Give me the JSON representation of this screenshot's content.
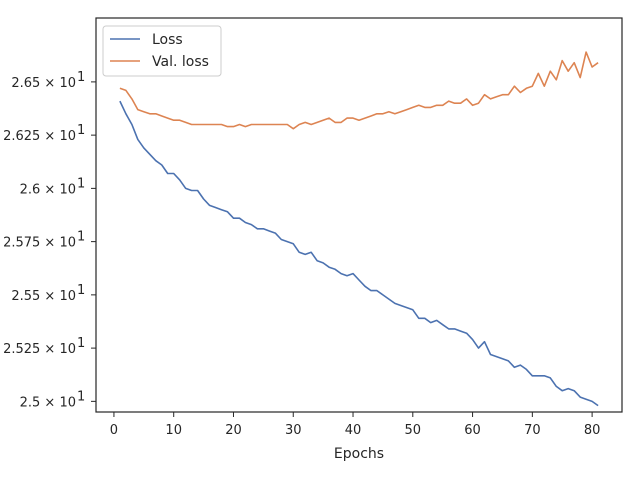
{
  "chart_data": {
    "type": "line",
    "title": "",
    "xlabel": "Epochs",
    "ylabel": "",
    "xlim": [
      -3,
      85
    ],
    "ylim": [
      24.95,
      26.8
    ],
    "xticks": [
      0,
      10,
      20,
      30,
      40,
      50,
      60,
      70,
      80
    ],
    "yticks": [
      {
        "value": 25.0,
        "label": "2.5",
        "exp": "1"
      },
      {
        "value": 25.25,
        "label": "2.525",
        "exp": "1"
      },
      {
        "value": 25.5,
        "label": "2.55",
        "exp": "1"
      },
      {
        "value": 25.75,
        "label": "2.575",
        "exp": "1"
      },
      {
        "value": 26.0,
        "label": "2.6",
        "exp": "1"
      },
      {
        "value": 26.25,
        "label": "2.625",
        "exp": "1"
      },
      {
        "value": 26.5,
        "label": "2.65",
        "exp": "1"
      }
    ],
    "grid": false,
    "legend_position": "top-left",
    "series": [
      {
        "name": "Loss",
        "color": "#4c72b0",
        "x": [
          1,
          2,
          3,
          4,
          5,
          6,
          7,
          8,
          9,
          10,
          11,
          12,
          13,
          14,
          15,
          16,
          17,
          18,
          19,
          20,
          21,
          22,
          23,
          24,
          25,
          26,
          27,
          28,
          29,
          30,
          31,
          32,
          33,
          34,
          35,
          36,
          37,
          38,
          39,
          40,
          41,
          42,
          43,
          44,
          45,
          46,
          47,
          48,
          49,
          50,
          51,
          52,
          53,
          54,
          55,
          56,
          57,
          58,
          59,
          60,
          61,
          62,
          63,
          64,
          65,
          66,
          67,
          68,
          69,
          70,
          71,
          72,
          73,
          74,
          75,
          76,
          77,
          78,
          79,
          80,
          81
        ],
        "values": [
          26.41,
          26.35,
          26.3,
          26.23,
          26.19,
          26.16,
          26.13,
          26.11,
          26.07,
          26.07,
          26.04,
          26.0,
          25.99,
          25.99,
          25.95,
          25.92,
          25.91,
          25.9,
          25.89,
          25.86,
          25.86,
          25.84,
          25.83,
          25.81,
          25.81,
          25.8,
          25.79,
          25.76,
          25.75,
          25.74,
          25.7,
          25.69,
          25.7,
          25.66,
          25.65,
          25.63,
          25.62,
          25.6,
          25.59,
          25.6,
          25.57,
          25.54,
          25.52,
          25.52,
          25.5,
          25.48,
          25.46,
          25.45,
          25.44,
          25.43,
          25.39,
          25.39,
          25.37,
          25.38,
          25.36,
          25.34,
          25.34,
          25.33,
          25.32,
          25.29,
          25.25,
          25.28,
          25.22,
          25.21,
          25.2,
          25.19,
          25.16,
          25.17,
          25.15,
          25.12,
          25.12,
          25.12,
          25.11,
          25.07,
          25.05,
          25.06,
          25.05,
          25.02,
          25.01,
          25.0,
          24.98
        ]
      },
      {
        "name": "Val. loss",
        "color": "#dd8452",
        "x": [
          1,
          2,
          3,
          4,
          5,
          6,
          7,
          8,
          9,
          10,
          11,
          12,
          13,
          14,
          15,
          16,
          17,
          18,
          19,
          20,
          21,
          22,
          23,
          24,
          25,
          26,
          27,
          28,
          29,
          30,
          31,
          32,
          33,
          34,
          35,
          36,
          37,
          38,
          39,
          40,
          41,
          42,
          43,
          44,
          45,
          46,
          47,
          48,
          49,
          50,
          51,
          52,
          53,
          54,
          55,
          56,
          57,
          58,
          59,
          60,
          61,
          62,
          63,
          64,
          65,
          66,
          67,
          68,
          69,
          70,
          71,
          72,
          73,
          74,
          75,
          76,
          77,
          78,
          79,
          80,
          81
        ],
        "values": [
          26.47,
          26.46,
          26.42,
          26.37,
          26.36,
          26.35,
          26.35,
          26.34,
          26.33,
          26.32,
          26.32,
          26.31,
          26.3,
          26.3,
          26.3,
          26.3,
          26.3,
          26.3,
          26.29,
          26.29,
          26.3,
          26.29,
          26.3,
          26.3,
          26.3,
          26.3,
          26.3,
          26.3,
          26.3,
          26.28,
          26.3,
          26.31,
          26.3,
          26.31,
          26.32,
          26.33,
          26.31,
          26.31,
          26.33,
          26.33,
          26.32,
          26.33,
          26.34,
          26.35,
          26.35,
          26.36,
          26.35,
          26.36,
          26.37,
          26.38,
          26.39,
          26.38,
          26.38,
          26.39,
          26.39,
          26.41,
          26.4,
          26.4,
          26.42,
          26.39,
          26.4,
          26.44,
          26.42,
          26.43,
          26.44,
          26.44,
          26.48,
          26.45,
          26.47,
          26.48,
          26.54,
          26.48,
          26.55,
          26.51,
          26.6,
          26.55,
          26.59,
          26.52,
          26.64,
          26.57,
          26.59
        ]
      }
    ]
  }
}
